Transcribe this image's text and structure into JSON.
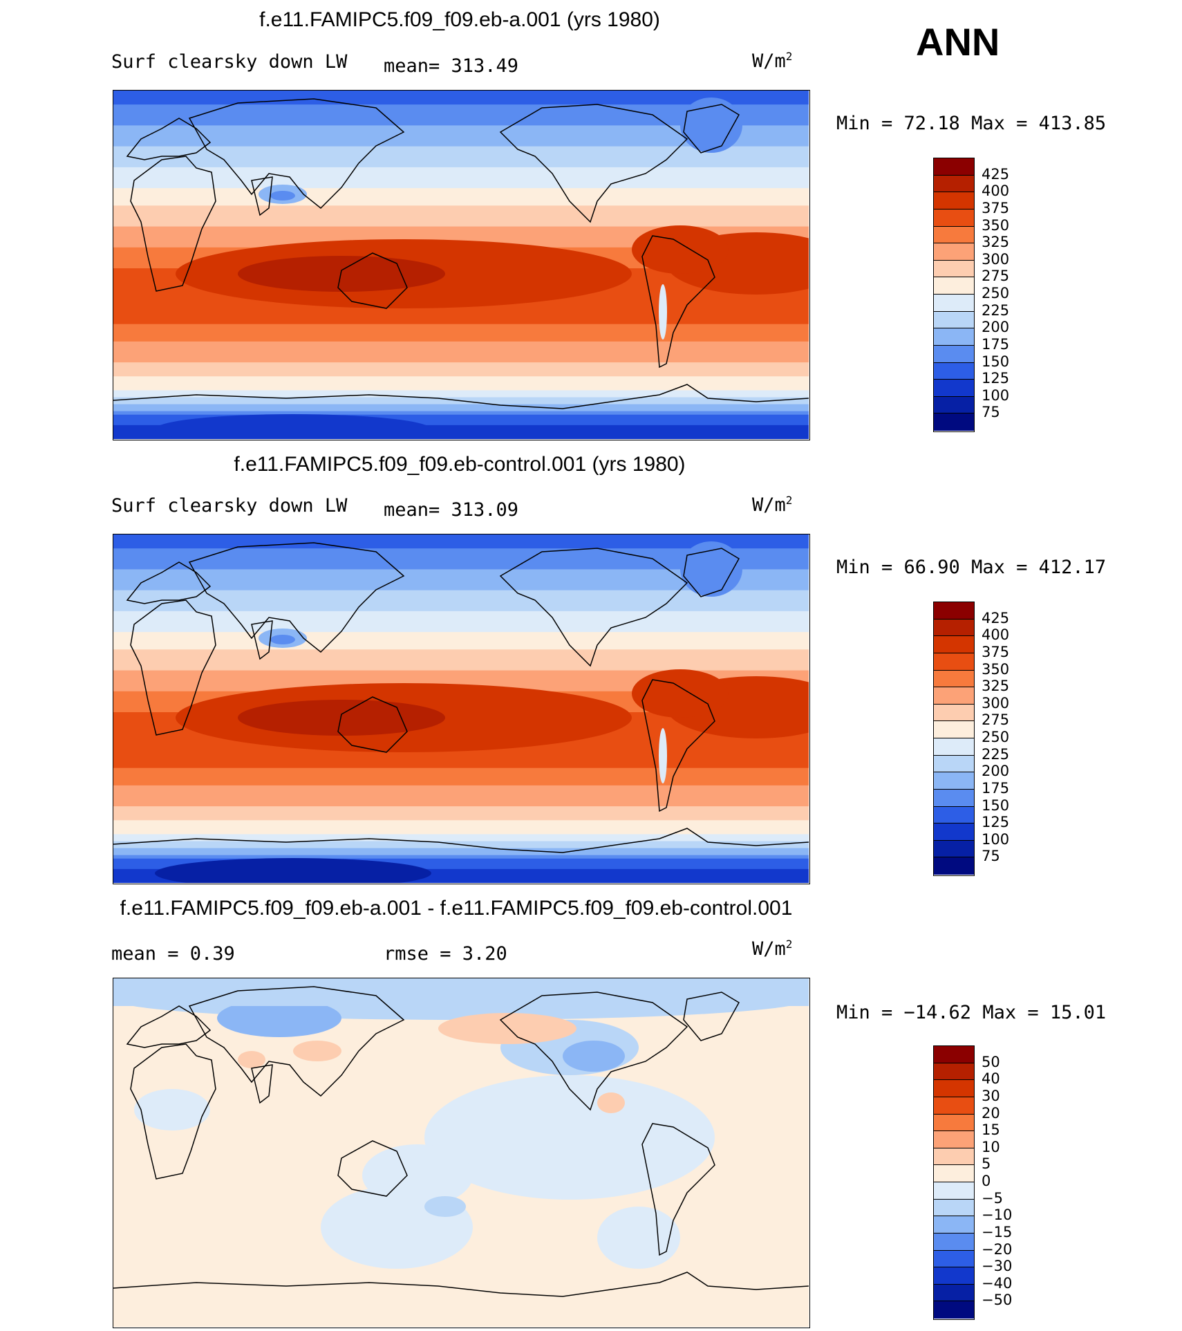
{
  "season": "ANN",
  "chart_data": [
    {
      "type": "heatmap",
      "title": "f.e11.FAMIPC5.f09_f09.eb-a.001 (yrs 1980)",
      "variable": "Surf clearsky down LW",
      "mean_label": "mean= 313.49",
      "units": "W/m",
      "units_exp": "2",
      "minmax": "Min =   72.18 Max = 413.85",
      "min": 72.18,
      "max": 413.85,
      "mean": 313.49,
      "levels": [
        "425",
        "400",
        "375",
        "350",
        "325",
        "300",
        "275",
        "250",
        "225",
        "200",
        "175",
        "150",
        "125",
        "100",
        "75"
      ],
      "colors": [
        "#8b0000",
        "#b52000",
        "#d43500",
        "#e84e12",
        "#f77a3d",
        "#fca277",
        "#fdcdb0",
        "#fdeedd",
        "#ddebf9",
        "#b9d6f7",
        "#8bb6f5",
        "#5a8cf0",
        "#2d5ee6",
        "#1238cc",
        "#0620a5",
        "#000a80"
      ]
    },
    {
      "type": "heatmap",
      "title": "f.e11.FAMIPC5.f09_f09.eb-control.001 (yrs 1980)",
      "variable": "Surf clearsky down LW",
      "mean_label": "mean= 313.09",
      "units": "W/m",
      "units_exp": "2",
      "minmax": "Min =   66.90 Max = 412.17",
      "min": 66.9,
      "max": 412.17,
      "mean": 313.09,
      "levels": [
        "425",
        "400",
        "375",
        "350",
        "325",
        "300",
        "275",
        "250",
        "225",
        "200",
        "175",
        "150",
        "125",
        "100",
        "75"
      ],
      "colors": [
        "#8b0000",
        "#b52000",
        "#d43500",
        "#e84e12",
        "#f77a3d",
        "#fca277",
        "#fdcdb0",
        "#fdeedd",
        "#ddebf9",
        "#b9d6f7",
        "#8bb6f5",
        "#5a8cf0",
        "#2d5ee6",
        "#1238cc",
        "#0620a5",
        "#000a80"
      ]
    },
    {
      "type": "heatmap",
      "title": "f.e11.FAMIPC5.f09_f09.eb-a.001 - f.e11.FAMIPC5.f09_f09.eb-control.001",
      "mean_label": "mean =    0.39",
      "rmse_label": "rmse =     3.20",
      "units": "W/m",
      "units_exp": "2",
      "minmax": "Min = −14.62 Max =   15.01",
      "min": -14.62,
      "max": 15.01,
      "mean": 0.39,
      "rmse": 3.2,
      "levels": [
        "50",
        "40",
        "30",
        "20",
        "15",
        "10",
        "5",
        "0",
        "−5",
        "−10",
        "−15",
        "−20",
        "−30",
        "−40",
        "−50"
      ],
      "colors": [
        "#8b0000",
        "#b52000",
        "#d43500",
        "#e84e12",
        "#f77a3d",
        "#fca277",
        "#fdcdb0",
        "#fdeedd",
        "#ddebf9",
        "#b9d6f7",
        "#8bb6f5",
        "#5a8cf0",
        "#2d5ee6",
        "#1238cc",
        "#0620a5",
        "#000a80"
      ]
    }
  ]
}
